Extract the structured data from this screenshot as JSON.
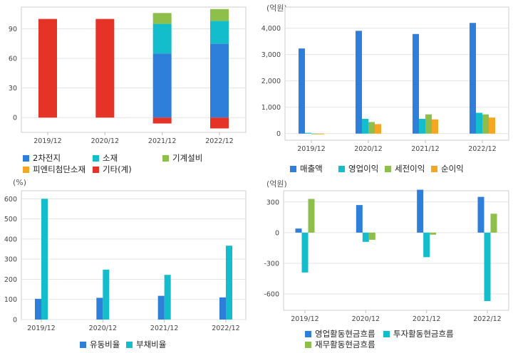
{
  "chart_data": [
    {
      "type": "bar",
      "stacked": true,
      "title": "",
      "unit_label": "",
      "categories": [
        "2019/12",
        "2020/12",
        "2021/12",
        "2022/12"
      ],
      "ylim": [
        -15,
        112
      ],
      "yticks": [
        0,
        30,
        60,
        90
      ],
      "series": [
        {
          "name": "2차전지",
          "color": "#2e7fd9",
          "values": [
            0,
            0,
            65,
            75
          ]
        },
        {
          "name": "소재",
          "color": "#14bdcc",
          "values": [
            0,
            0,
            30,
            23
          ]
        },
        {
          "name": "기계설비",
          "color": "#8dbf4a",
          "values": [
            0,
            0,
            11,
            12
          ]
        },
        {
          "name": "피엔티첨단소재",
          "color": "#f5a623",
          "values": [
            0,
            0,
            0,
            0
          ]
        },
        {
          "name": "기타(계)",
          "color": "#e63327",
          "values": [
            100,
            100,
            -6,
            -11
          ]
        }
      ]
    },
    {
      "type": "bar",
      "title": "",
      "unit_label": "(억원)",
      "categories": [
        "2019/12",
        "2020/12",
        "2021/12",
        "2022/12"
      ],
      "ylim": [
        -250,
        4800
      ],
      "yticks": [
        0,
        1000,
        2000,
        3000,
        4000
      ],
      "series": [
        {
          "name": "매출액",
          "color": "#2e7fd9",
          "values": [
            3230,
            3900,
            3780,
            4200
          ]
        },
        {
          "name": "영업이익",
          "color": "#14bdcc",
          "values": [
            30,
            560,
            560,
            790
          ]
        },
        {
          "name": "세전이익",
          "color": "#8dbf4a",
          "values": [
            -20,
            440,
            730,
            730
          ]
        },
        {
          "name": "순이익",
          "color": "#f5a623",
          "values": [
            -20,
            360,
            540,
            610
          ]
        }
      ]
    },
    {
      "type": "bar",
      "title": "",
      "unit_label": "(%)",
      "categories": [
        "2019/12",
        "2020/12",
        "2021/12",
        "2022/12"
      ],
      "ylim": [
        0,
        640
      ],
      "yticks": [
        0,
        100,
        200,
        300,
        400,
        500,
        600
      ],
      "series": [
        {
          "name": "유동비율",
          "color": "#2e7fd9",
          "values": [
            103,
            108,
            118,
            110
          ]
        },
        {
          "name": "부채비율",
          "color": "#14bdcc",
          "values": [
            600,
            248,
            222,
            367
          ]
        }
      ]
    },
    {
      "type": "bar",
      "title": "",
      "unit_label": "(억원)",
      "categories": [
        "2019/12",
        "2020/12",
        "2021/12",
        "2022/12"
      ],
      "ylim": [
        -760,
        410
      ],
      "yticks": [
        -600,
        -300,
        0,
        300
      ],
      "series": [
        {
          "name": "영업활동현금흐름",
          "color": "#2e7fd9",
          "values": [
            40,
            270,
            420,
            350
          ]
        },
        {
          "name": "투자활동현금흐름",
          "color": "#14bdcc",
          "values": [
            -390,
            -90,
            -240,
            -670
          ]
        },
        {
          "name": "재무활동현금흐름",
          "color": "#8dbf4a",
          "values": [
            330,
            -70,
            -20,
            185
          ]
        }
      ]
    }
  ]
}
